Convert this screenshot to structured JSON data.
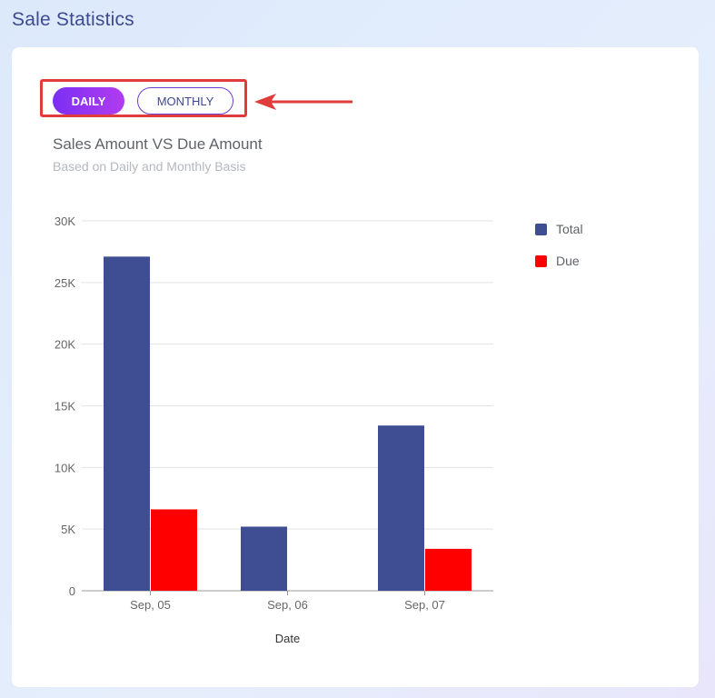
{
  "page_title": "Sale Statistics",
  "toggle": {
    "daily_label": "DAILY",
    "monthly_label": "MONTHLY",
    "active": "DAILY"
  },
  "annotation": {
    "highlight_color": "#e03c3c",
    "arrow_icon": "left-arrow-icon"
  },
  "colors": {
    "total": "#3f4e93",
    "due": "#ff0000",
    "accent": "#7b2ff2"
  },
  "chart_data": {
    "type": "bar",
    "title": "Sales Amount VS Due Amount",
    "subtitle": "Based on Daily and Monthly Basis",
    "xlabel": "Date",
    "ylabel": "",
    "categories": [
      "Sep, 05",
      "Sep, 06",
      "Sep, 07"
    ],
    "series": [
      {
        "name": "Total",
        "color": "#3f4e93",
        "values": [
          27100,
          5200,
          13400
        ]
      },
      {
        "name": "Due",
        "color": "#ff0000",
        "values": [
          6600,
          0,
          3400
        ]
      }
    ],
    "ylim": [
      0,
      30000
    ],
    "yticks": [
      0,
      5000,
      10000,
      15000,
      20000,
      25000,
      30000
    ],
    "ytick_labels": [
      "0",
      "5K",
      "10K",
      "15K",
      "20K",
      "25K",
      "30K"
    ],
    "grid": true,
    "legend": "right"
  }
}
